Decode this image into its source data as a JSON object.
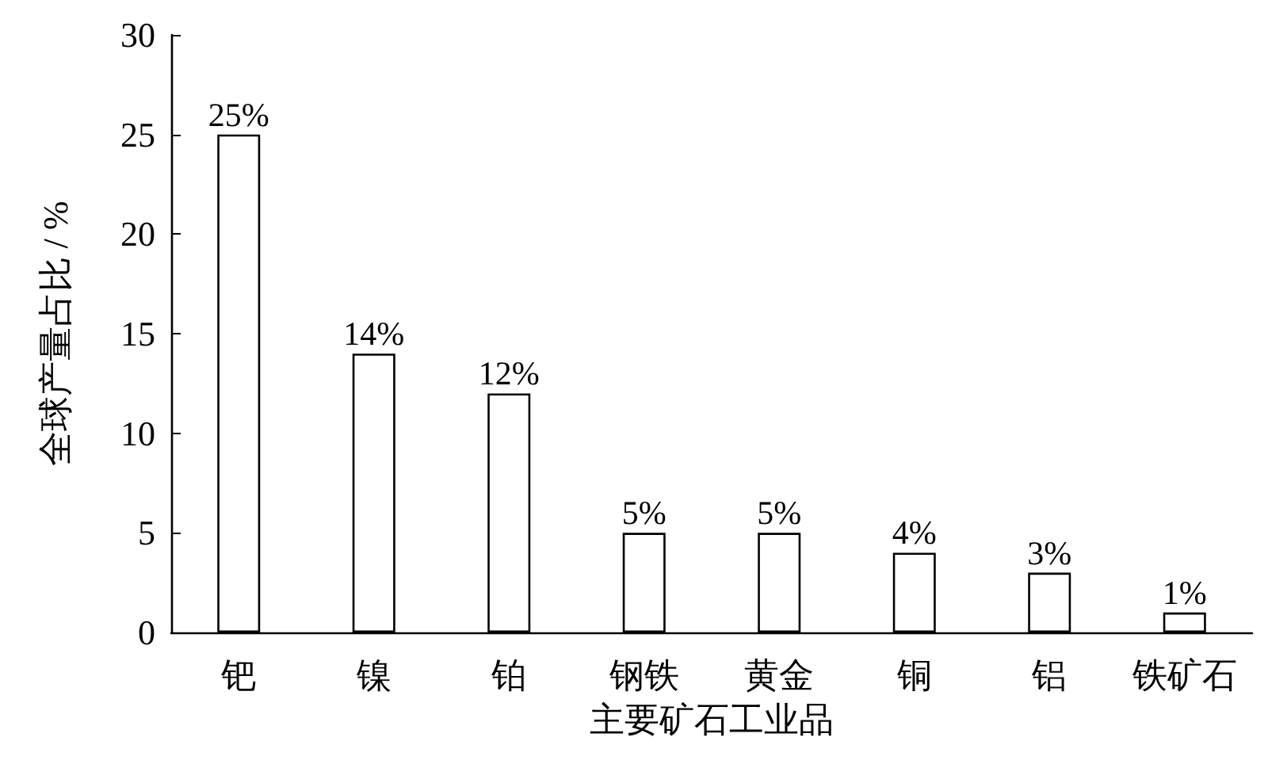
{
  "chart_data": {
    "type": "bar",
    "xlabel": "主要矿石工业品",
    "ylabel": "全球产量占比 / %",
    "categories": [
      "钯",
      "镍",
      "铂",
      "钢铁",
      "黄金",
      "铜",
      "铝",
      "铁矿石"
    ],
    "values": [
      25,
      14,
      12,
      5,
      5,
      4,
      3,
      1
    ],
    "value_labels": [
      "25%",
      "14%",
      "12%",
      "5%",
      "5%",
      "4%",
      "3%",
      "1%"
    ],
    "color": "#ffffff",
    "ylim": [
      0,
      30
    ],
    "yticks": [
      0,
      5,
      10,
      15,
      20,
      25,
      30
    ],
    "grid": false
  }
}
